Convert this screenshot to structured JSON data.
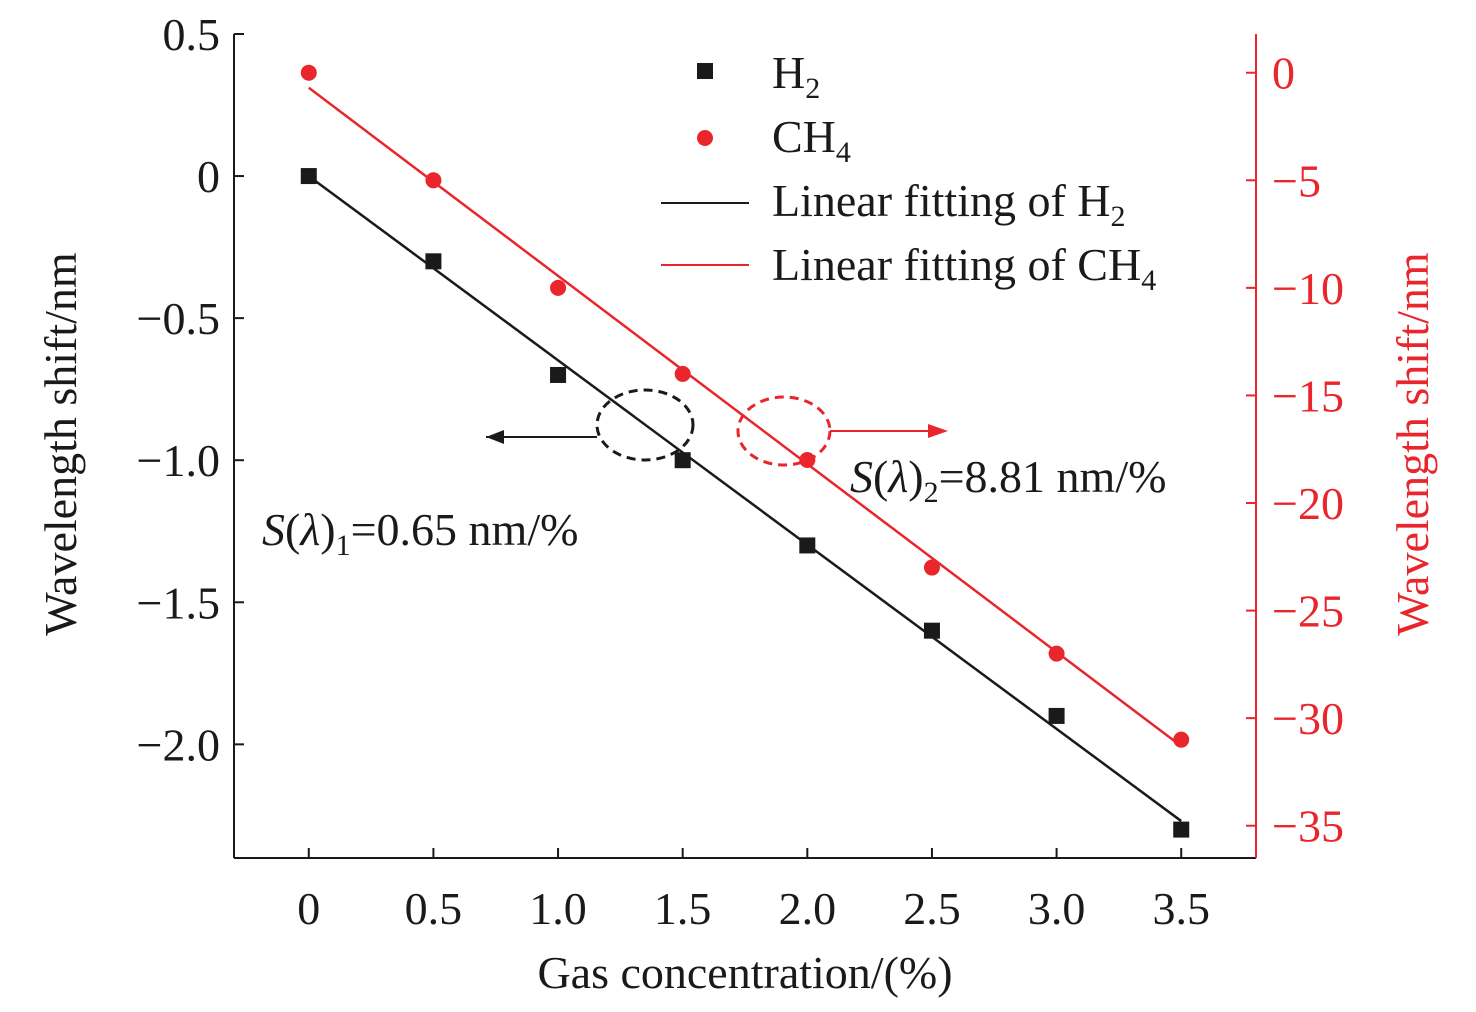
{
  "chart_data": {
    "type": "scatter",
    "xlabel": "Gas concentration/(%)",
    "ylabel_left": "Wavelength shift/nm",
    "ylabel_right": "Wavelength shift/nm",
    "xlim": [
      -0.3,
      3.8
    ],
    "ylim_left": [
      -2.4,
      0.5
    ],
    "ylim_right": [
      -36.5,
      1.8
    ],
    "x_ticks": [
      0,
      0.5,
      1.0,
      1.5,
      2.0,
      2.5,
      3.0,
      3.5
    ],
    "x_tick_labels": [
      "0",
      "0.5",
      "1.0",
      "1.5",
      "2.0",
      "2.5",
      "3.0",
      "3.5"
    ],
    "y_left_ticks": [
      0.5,
      0,
      -0.5,
      -1.0,
      -1.5,
      -2.0
    ],
    "y_left_tick_labels": [
      "0.5",
      "0",
      "−0.5",
      "−1.0",
      "−1.5",
      "−2.0"
    ],
    "y_right_ticks": [
      0,
      -5,
      -10,
      -15,
      -20,
      -25,
      -30,
      -35
    ],
    "y_right_tick_labels": [
      "0",
      "−5",
      "−10",
      "−15",
      "−20",
      "−25",
      "−30",
      "−35"
    ],
    "legend_position": "top-right",
    "series": [
      {
        "name": "H",
        "sub": "2",
        "axis": "left",
        "marker": "square",
        "color": "#1a1a1a",
        "x": [
          0,
          0.5,
          1.0,
          1.5,
          2.0,
          2.5,
          3.0,
          3.5
        ],
        "y": [
          0,
          -0.3,
          -0.7,
          -1.0,
          -1.3,
          -1.6,
          -1.9,
          -2.3
        ]
      },
      {
        "name": "CH",
        "sub": "4",
        "axis": "right",
        "marker": "circle",
        "color": "#e8262b",
        "x": [
          0,
          0.5,
          1.0,
          1.5,
          2.0,
          2.5,
          3.0,
          3.5
        ],
        "y": [
          0,
          -5,
          -10,
          -14,
          -18,
          -23,
          -27,
          -31
        ]
      }
    ],
    "fits": [
      {
        "name": "Linear fitting of H",
        "sub": "2",
        "axis": "left",
        "color": "#1a1a1a",
        "x": [
          0,
          3.5
        ],
        "y": [
          0,
          -2.27
        ]
      },
      {
        "name": "Linear fitting of CH",
        "sub": "4",
        "axis": "right",
        "color": "#e8262b",
        "x": [
          0,
          3.5
        ],
        "y": [
          -0.7,
          -31.3
        ]
      }
    ],
    "annotations": [
      {
        "name": "S(λ)1",
        "prefix": "S",
        "lambda": "λ",
        "sub": "1",
        "value": "=0.65 nm/%"
      },
      {
        "name": "S(λ)2",
        "prefix": "S",
        "lambda": "λ",
        "sub": "2",
        "value": "=8.81 nm/%"
      }
    ]
  },
  "colors": {
    "black": "#1a1a1a",
    "red": "#e8262b"
  }
}
